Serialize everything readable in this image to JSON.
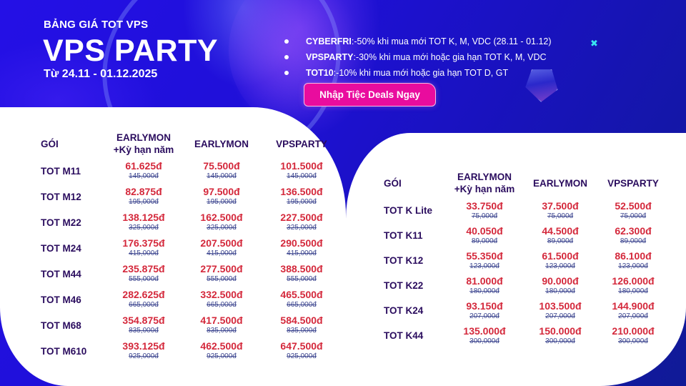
{
  "header": {
    "subtitle": "BẢNG GIÁ TOT VPS",
    "title": "VPS PARTY",
    "date_range": "Từ 24.11 - 01.12.2025"
  },
  "promos": [
    {
      "code": "CYBERFRI",
      "sep": " : ",
      "text": "-50% khi mua mới TOT K, M, VDC (28.11 - 01.12)"
    },
    {
      "code": "VPSPARTY",
      "sep": ": ",
      "text": "-30% khi mua mới hoặc gia hạn TOT K, M, VDC"
    },
    {
      "code": "TOT10",
      "sep": " : ",
      "text": "-10% khi mua mới hoặc gia hạn TOT D, GT"
    }
  ],
  "cta_label": "Nhập Tiệc Deals Ngay",
  "decorations": {
    "sparkle": "✖",
    "crystal": "crystal-icon"
  },
  "colors": {
    "background": "#1a10c4",
    "cta": "#e90c9e",
    "price_new": "#d4283b",
    "price_old": "#3e4790",
    "heading": "#2a0c5e",
    "sparkle": "#39e6f0"
  },
  "table_m": {
    "headers": [
      "GÓI",
      "EARLYMON\n+Kỳ hạn năm",
      "EARLYMON",
      "VPSPARTY"
    ],
    "header_lines": [
      [
        "GÓI"
      ],
      [
        "EARLYMON",
        "+Kỳ hạn năm"
      ],
      [
        "EARLYMON"
      ],
      [
        "VPSPARTY"
      ]
    ],
    "rows": [
      {
        "name": "TOT M11",
        "prices": [
          {
            "new": "61.625đ",
            "old": "145,000đ"
          },
          {
            "new": "75.500đ",
            "old": "145,000đ"
          },
          {
            "new": "101.500đ",
            "old": "145,000đ"
          }
        ]
      },
      {
        "name": "TOT M12",
        "prices": [
          {
            "new": "82.875đ",
            "old": "195,000đ"
          },
          {
            "new": "97.500đ",
            "old": "195,000đ"
          },
          {
            "new": "136.500đ",
            "old": "195,000đ"
          }
        ]
      },
      {
        "name": "TOT M22",
        "prices": [
          {
            "new": "138.125đ",
            "old": "325,000đ"
          },
          {
            "new": "162.500đ",
            "old": "325,000đ"
          },
          {
            "new": "227.500đ",
            "old": "325,000đ"
          }
        ]
      },
      {
        "name": "TOT M24",
        "prices": [
          {
            "new": "176.375đ",
            "old": "415,000đ"
          },
          {
            "new": "207.500đ",
            "old": "415,000đ"
          },
          {
            "new": "290.500đ",
            "old": "415,000đ"
          }
        ]
      },
      {
        "name": "TOT M44",
        "prices": [
          {
            "new": "235.875đ",
            "old": "555,000đ"
          },
          {
            "new": "277.500đ",
            "old": "555,000đ"
          },
          {
            "new": "388.500đ",
            "old": "555,000đ"
          }
        ]
      },
      {
        "name": "TOT M46",
        "prices": [
          {
            "new": "282.625đ",
            "old": "665,000đ"
          },
          {
            "new": "332.500đ",
            "old": "665,000đ"
          },
          {
            "new": "465.500đ",
            "old": "665,000đ"
          }
        ]
      },
      {
        "name": "TOT M68",
        "prices": [
          {
            "new": "354.875đ",
            "old": "835,000đ"
          },
          {
            "new": "417.500đ",
            "old": "835,000đ"
          },
          {
            "new": "584.500đ",
            "old": "835,000đ"
          }
        ]
      },
      {
        "name": "TOT M610",
        "prices": [
          {
            "new": "393.125đ",
            "old": "925,000đ"
          },
          {
            "new": "462.500đ",
            "old": "925,000đ"
          },
          {
            "new": "647.500đ",
            "old": "925,000đ"
          }
        ]
      }
    ]
  },
  "table_k": {
    "header_lines": [
      [
        "GÓI"
      ],
      [
        "EARLYMON",
        "+Kỳ hạn năm"
      ],
      [
        "EARLYMON"
      ],
      [
        "VPSPARTY"
      ]
    ],
    "rows": [
      {
        "name": "TOT K Lite",
        "prices": [
          {
            "new": "33.750đ",
            "old": "75,000đ"
          },
          {
            "new": "37.500đ",
            "old": "75,000đ"
          },
          {
            "new": "52.500đ",
            "old": "75,000đ"
          }
        ]
      },
      {
        "name": "TOT K11",
        "prices": [
          {
            "new": "40.050đ",
            "old": "89,000đ"
          },
          {
            "new": "44.500đ",
            "old": "89,000đ"
          },
          {
            "new": "62.300đ",
            "old": "89,000đ"
          }
        ]
      },
      {
        "name": "TOT K12",
        "prices": [
          {
            "new": "55.350đ",
            "old": "123,000đ"
          },
          {
            "new": "61.500đ",
            "old": "123,000đ"
          },
          {
            "new": "86.100đ",
            "old": "123,000đ"
          }
        ]
      },
      {
        "name": "TOT K22",
        "prices": [
          {
            "new": "81.000đ",
            "old": "180,000đ"
          },
          {
            "new": "90.000đ",
            "old": "180,000đ"
          },
          {
            "new": "126.000đ",
            "old": "180,000đ"
          }
        ]
      },
      {
        "name": "TOT K24",
        "prices": [
          {
            "new": "93.150đ",
            "old": "207,000đ"
          },
          {
            "new": "103.500đ",
            "old": "207,000đ"
          },
          {
            "new": "144.900đ",
            "old": "207,000đ"
          }
        ]
      },
      {
        "name": "TOT K44",
        "prices": [
          {
            "new": "135.000đ",
            "old": "300,000đ"
          },
          {
            "new": "150.000đ",
            "old": "300,000đ"
          },
          {
            "new": "210.000đ",
            "old": "300,000đ"
          }
        ]
      }
    ]
  }
}
